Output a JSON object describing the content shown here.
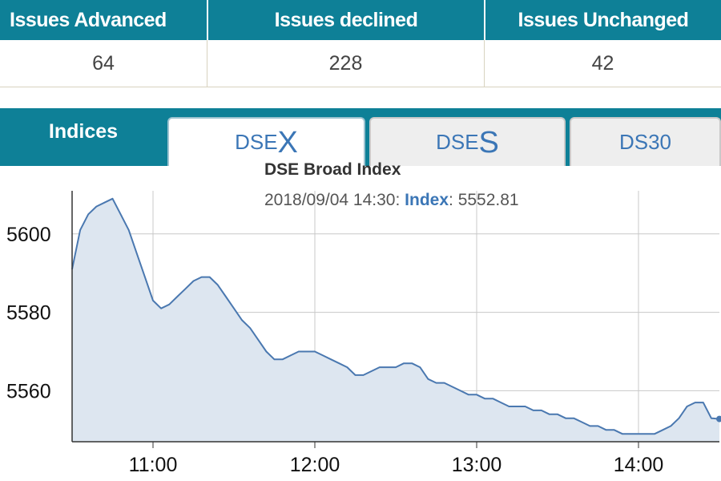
{
  "issues": {
    "headers": [
      "Issues Advanced",
      "Issues declined",
      "Issues Unchanged"
    ],
    "values": [
      "64",
      "228",
      "42"
    ]
  },
  "tabs": {
    "indices_label": "Indices",
    "dsex": {
      "prefix": "DSE",
      "suffix": "X"
    },
    "dses": {
      "prefix": "DSE",
      "suffix": "S"
    },
    "ds30": {
      "label": "DS30"
    }
  },
  "chart_data": {
    "type": "area",
    "title": "DSE Broad Index",
    "tooltip": {
      "time": "2018/09/04 14:30:",
      "label": "Index",
      "value": "5552.81"
    },
    "x_ticks": [
      "11:00",
      "12:00",
      "13:00",
      "14:00"
    ],
    "y_ticks": [
      5600,
      5580,
      5560
    ],
    "xlim": [
      "10:30",
      "14:30"
    ],
    "ylim": [
      5547,
      5611
    ],
    "grid": true,
    "colors": {
      "line": "#4a78b0",
      "fill": "#dde6f0",
      "grid": "#c8c8c8",
      "accent": "#0e8097"
    },
    "series": [
      {
        "x": [
          "10:30",
          "10:33",
          "10:36",
          "10:39",
          "10:42",
          "10:45",
          "10:48",
          "10:51",
          "10:54",
          "10:57",
          "11:00",
          "11:03",
          "11:06",
          "11:09",
          "11:12",
          "11:15",
          "11:18",
          "11:21",
          "11:24",
          "11:27",
          "11:30",
          "11:33",
          "11:36",
          "11:39",
          "11:42",
          "11:45",
          "11:48",
          "11:51",
          "11:54",
          "11:57",
          "12:00",
          "12:03",
          "12:06",
          "12:09",
          "12:12",
          "12:15",
          "12:18",
          "12:21",
          "12:24",
          "12:27",
          "12:30",
          "12:33",
          "12:36",
          "12:39",
          "12:42",
          "12:45",
          "12:48",
          "12:51",
          "12:54",
          "12:57",
          "13:00",
          "13:03",
          "13:06",
          "13:09",
          "13:12",
          "13:15",
          "13:18",
          "13:21",
          "13:24",
          "13:27",
          "13:30",
          "13:33",
          "13:36",
          "13:39",
          "13:42",
          "13:45",
          "13:48",
          "13:51",
          "13:54",
          "13:57",
          "14:00",
          "14:03",
          "14:06",
          "14:09",
          "14:12",
          "14:15",
          "14:18",
          "14:21",
          "14:24",
          "14:27",
          "14:30"
        ],
        "y": [
          5591,
          5601,
          5605,
          5607,
          5608,
          5609,
          5605,
          5601,
          5595,
          5589,
          5583,
          5581,
          5582,
          5584,
          5586,
          5588,
          5589,
          5589,
          5587,
          5584,
          5581,
          5578,
          5576,
          5573,
          5570,
          5568,
          5568,
          5569,
          5570,
          5570,
          5570,
          5569,
          5568,
          5567,
          5566,
          5564,
          5564,
          5565,
          5566,
          5566,
          5566,
          5567,
          5567,
          5566,
          5563,
          5562,
          5562,
          5561,
          5560,
          5559,
          5559,
          5558,
          5558,
          5557,
          5556,
          5556,
          5556,
          5555,
          5555,
          5554,
          5554,
          5553,
          5553,
          5552,
          5551,
          5551,
          5550,
          5550,
          5549,
          5549,
          5549,
          5549,
          5549,
          5550,
          5551,
          5553,
          5556,
          5557,
          5557,
          5553,
          5552.81
        ]
      }
    ]
  }
}
